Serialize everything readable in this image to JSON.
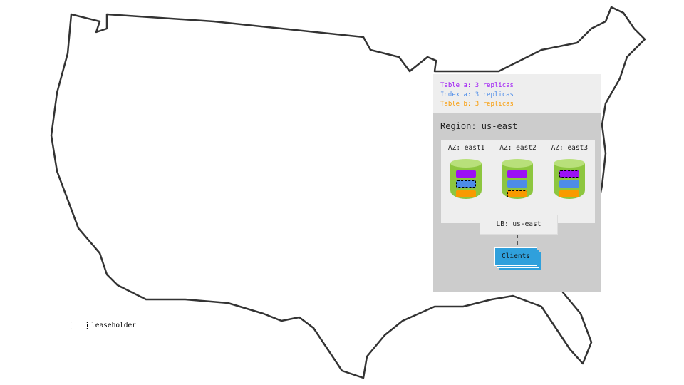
{
  "legend": [
    {
      "text": "Table a: 3 replicas",
      "color": "#9b10f5"
    },
    {
      "text": "Index a: 3 replicas",
      "color": "#4d8ce8"
    },
    {
      "text": "Table b: 3 replicas",
      "color": "#f99a00"
    }
  ],
  "region": "Region: us-east",
  "azs": [
    {
      "label": "AZ: east1",
      "leaseholder": "Index a"
    },
    {
      "label": "AZ: east2",
      "leaseholder": "Table b"
    },
    {
      "label": "AZ: east3",
      "leaseholder": "Table a"
    }
  ],
  "lb": "LB: us-east",
  "clients": "Clients",
  "key": "leaseholder"
}
